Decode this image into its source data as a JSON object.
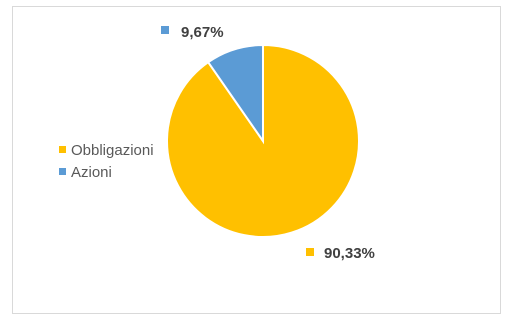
{
  "chart_data": {
    "type": "pie",
    "title": "",
    "slices": [
      {
        "name": "Obbligazioni",
        "value": 90.33,
        "label": "90,33%",
        "color": "#FFC000"
      },
      {
        "name": "Azioni",
        "value": 9.67,
        "label": "9,67%",
        "color": "#5B9BD5"
      }
    ],
    "legend": {
      "position": "left"
    }
  }
}
